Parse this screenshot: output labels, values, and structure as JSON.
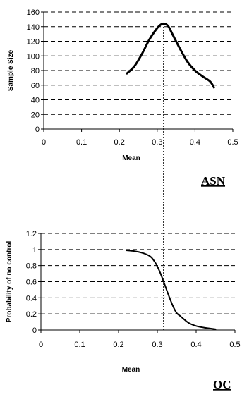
{
  "chart_data": [
    {
      "type": "line",
      "panel_label": "ASN",
      "xlabel": "Mean",
      "ylabel": "Sample Size",
      "xlim": [
        0,
        0.5
      ],
      "ylim": [
        0,
        160
      ],
      "x_ticks": [
        "0",
        "0.1",
        "0.2",
        "0.3",
        "0.4",
        "0.5"
      ],
      "y_ticks": [
        "0",
        "20",
        "40",
        "60",
        "80",
        "100",
        "120",
        "140",
        "160"
      ],
      "grid": "horizontal dashed",
      "reference_line_x": 0.317,
      "series": [
        {
          "x": [
            0.22,
            0.24,
            0.26,
            0.28,
            0.3,
            0.31,
            0.32,
            0.33,
            0.34,
            0.36,
            0.38,
            0.4,
            0.42,
            0.44,
            0.45
          ],
          "y": [
            76,
            86,
            103,
            123,
            138,
            143,
            144,
            140,
            130,
            110,
            92,
            80,
            72,
            65,
            57
          ]
        }
      ]
    },
    {
      "type": "line",
      "panel_label": "OC",
      "xlabel": "Mean",
      "ylabel": "Probability of no control",
      "xlim": [
        0,
        0.5
      ],
      "ylim": [
        0,
        1.2
      ],
      "x_ticks": [
        "0",
        "0.1",
        "0.2",
        "0.3",
        "0.4",
        "0.5"
      ],
      "y_ticks": [
        "0",
        "0.2",
        "0.4",
        "0.6",
        "0.8",
        "1",
        "1.2"
      ],
      "grid": "horizontal dashed",
      "reference_line_x": 0.317,
      "series": [
        {
          "x": [
            0.22,
            0.24,
            0.26,
            0.28,
            0.29,
            0.3,
            0.31,
            0.32,
            0.33,
            0.34,
            0.35,
            0.36,
            0.38,
            0.4,
            0.42,
            0.45
          ],
          "y": [
            0.99,
            0.98,
            0.96,
            0.92,
            0.87,
            0.79,
            0.68,
            0.55,
            0.42,
            0.3,
            0.21,
            0.17,
            0.09,
            0.05,
            0.03,
            0.01
          ]
        }
      ]
    }
  ]
}
